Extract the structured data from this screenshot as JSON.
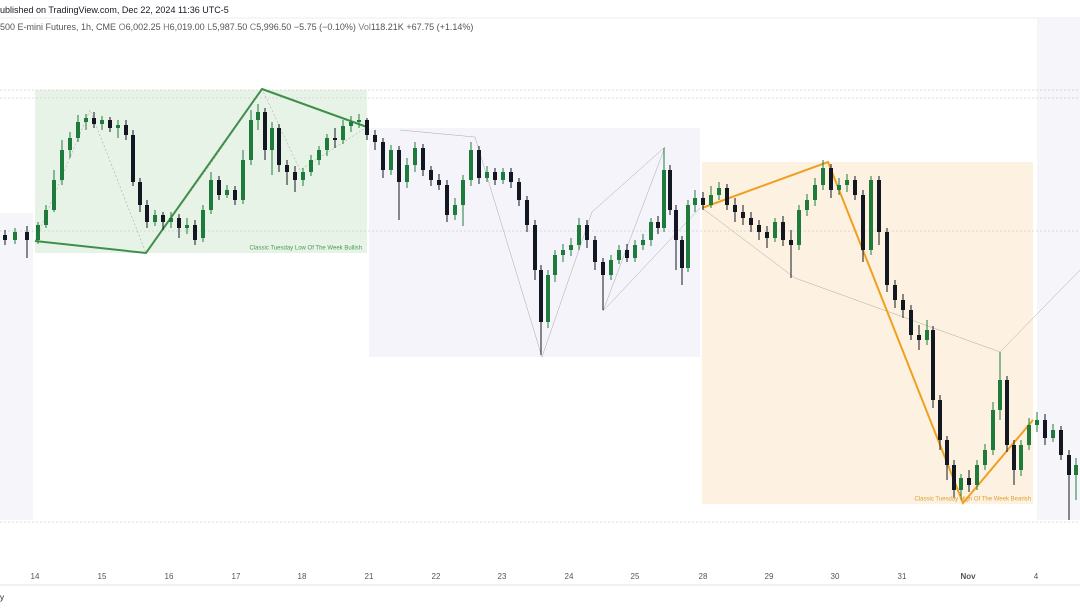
{
  "chart_data": {
    "type": "candlestick",
    "header": {
      "published": "ublished on TradingView.com, Dec 22, 2024 11:36 UTC-5",
      "symbol": "500 E-mini Futures, 1h, CME",
      "open_label": "O",
      "open": "6,002.25",
      "high_label": "H",
      "high": "6,019.00",
      "low_label": "L",
      "low": "5,987.50",
      "close_label": "C",
      "close": "5,996.50",
      "change": "−5.75 (−0.10%)",
      "vol_label": "Vol",
      "vol": "118.21K",
      "vol_change": "+67.75 (+1.14%)"
    },
    "annotations": [
      "Classic Tuesday Low Of The Week Bullish",
      "Classic Tuesday High Of The Week Bearish"
    ],
    "footer": "y",
    "up_color": "#1e7b3c",
    "down_color": "#131722",
    "xlim": [
      0,
      1080
    ],
    "ylim": [
      0,
      600
    ],
    "xticks": [
      {
        "value": 35,
        "label": "14"
      },
      {
        "value": 102,
        "label": "15"
      },
      {
        "value": 169,
        "label": "16"
      },
      {
        "value": 236,
        "label": "17"
      },
      {
        "value": 302,
        "label": "18"
      },
      {
        "value": 369,
        "label": "21"
      },
      {
        "value": 436,
        "label": "22"
      },
      {
        "value": 502,
        "label": "23"
      },
      {
        "value": 569,
        "label": "24"
      },
      {
        "value": 635,
        "label": "25"
      },
      {
        "value": 703,
        "label": "28"
      },
      {
        "value": 769,
        "label": "29"
      },
      {
        "value": 835,
        "label": "30"
      },
      {
        "value": 902,
        "label": "31"
      },
      {
        "value": 968,
        "label": "Nov"
      },
      {
        "value": 1036,
        "label": "4"
      }
    ],
    "candles": [
      {
        "x": 5,
        "open": 365,
        "high": 370,
        "low": 355,
        "close": 360
      },
      {
        "x": 15,
        "open": 360,
        "high": 372,
        "low": 356,
        "close": 368
      },
      {
        "x": 27,
        "open": 368,
        "high": 374,
        "low": 342,
        "close": 360
      },
      {
        "x": 38,
        "open": 360,
        "high": 378,
        "low": 356,
        "close": 375
      },
      {
        "x": 46,
        "open": 375,
        "high": 395,
        "low": 372,
        "close": 390
      },
      {
        "x": 54,
        "open": 390,
        "high": 430,
        "low": 388,
        "close": 420
      },
      {
        "x": 62,
        "open": 420,
        "high": 460,
        "low": 415,
        "close": 450
      },
      {
        "x": 70,
        "open": 450,
        "high": 468,
        "low": 442,
        "close": 462
      },
      {
        "x": 78,
        "open": 462,
        "high": 485,
        "low": 458,
        "close": 478
      },
      {
        "x": 86,
        "open": 478,
        "high": 486,
        "low": 470,
        "close": 482
      },
      {
        "x": 94,
        "open": 482,
        "high": 488,
        "low": 472,
        "close": 476
      },
      {
        "x": 102,
        "open": 476,
        "high": 484,
        "low": 470,
        "close": 480
      },
      {
        "x": 110,
        "open": 480,
        "high": 483,
        "low": 468,
        "close": 472
      },
      {
        "x": 118,
        "open": 472,
        "high": 480,
        "low": 462,
        "close": 475
      },
      {
        "x": 126,
        "open": 475,
        "high": 480,
        "low": 460,
        "close": 465
      },
      {
        "x": 133,
        "open": 465,
        "high": 470,
        "low": 414,
        "close": 418
      },
      {
        "x": 140,
        "open": 418,
        "high": 422,
        "low": 388,
        "close": 395
      },
      {
        "x": 147,
        "open": 395,
        "high": 400,
        "low": 372,
        "close": 378
      },
      {
        "x": 155,
        "open": 378,
        "high": 390,
        "low": 374,
        "close": 385
      },
      {
        "x": 163,
        "open": 385,
        "high": 388,
        "low": 370,
        "close": 378
      },
      {
        "x": 171,
        "open": 378,
        "high": 388,
        "low": 372,
        "close": 382
      },
      {
        "x": 179,
        "open": 382,
        "high": 386,
        "low": 362,
        "close": 372
      },
      {
        "x": 187,
        "open": 372,
        "high": 382,
        "low": 366,
        "close": 375
      },
      {
        "x": 195,
        "open": 375,
        "high": 380,
        "low": 355,
        "close": 360
      },
      {
        "x": 203,
        "open": 362,
        "high": 395,
        "low": 358,
        "close": 390
      },
      {
        "x": 211,
        "open": 390,
        "high": 428,
        "low": 386,
        "close": 420
      },
      {
        "x": 219,
        "open": 420,
        "high": 424,
        "low": 400,
        "close": 405
      },
      {
        "x": 227,
        "open": 405,
        "high": 415,
        "low": 402,
        "close": 410
      },
      {
        "x": 235,
        "open": 410,
        "high": 414,
        "low": 395,
        "close": 400
      },
      {
        "x": 243,
        "open": 400,
        "high": 450,
        "low": 396,
        "close": 440
      },
      {
        "x": 251,
        "open": 440,
        "high": 490,
        "low": 435,
        "close": 480
      },
      {
        "x": 258,
        "open": 480,
        "high": 496,
        "low": 470,
        "close": 488
      },
      {
        "x": 265,
        "open": 488,
        "high": 492,
        "low": 440,
        "close": 450
      },
      {
        "x": 272,
        "open": 450,
        "high": 478,
        "low": 425,
        "close": 472
      },
      {
        "x": 279,
        "open": 472,
        "high": 476,
        "low": 428,
        "close": 435
      },
      {
        "x": 287,
        "open": 435,
        "high": 440,
        "low": 415,
        "close": 428
      },
      {
        "x": 295,
        "open": 428,
        "high": 434,
        "low": 408,
        "close": 420
      },
      {
        "x": 303,
        "open": 420,
        "high": 432,
        "low": 414,
        "close": 428
      },
      {
        "x": 311,
        "open": 428,
        "high": 445,
        "low": 424,
        "close": 440
      },
      {
        "x": 319,
        "open": 440,
        "high": 454,
        "low": 435,
        "close": 450
      },
      {
        "x": 327,
        "open": 450,
        "high": 466,
        "low": 444,
        "close": 462
      },
      {
        "x": 335,
        "open": 462,
        "high": 472,
        "low": 452,
        "close": 460
      },
      {
        "x": 343,
        "open": 460,
        "high": 480,
        "low": 456,
        "close": 474
      },
      {
        "x": 351,
        "open": 474,
        "high": 484,
        "low": 468,
        "close": 478
      },
      {
        "x": 359,
        "open": 478,
        "high": 486,
        "low": 472,
        "close": 480
      },
      {
        "x": 367,
        "open": 480,
        "high": 482,
        "low": 460,
        "close": 465
      },
      {
        "x": 375,
        "open": 465,
        "high": 470,
        "low": 450,
        "close": 458
      },
      {
        "x": 383,
        "open": 458,
        "high": 462,
        "low": 422,
        "close": 430
      },
      {
        "x": 391,
        "open": 430,
        "high": 455,
        "low": 425,
        "close": 450
      },
      {
        "x": 399,
        "open": 450,
        "high": 454,
        "low": 380,
        "close": 418
      },
      {
        "x": 407,
        "open": 418,
        "high": 442,
        "low": 412,
        "close": 435
      },
      {
        "x": 415,
        "open": 435,
        "high": 458,
        "low": 428,
        "close": 452
      },
      {
        "x": 423,
        "open": 452,
        "high": 456,
        "low": 424,
        "close": 430
      },
      {
        "x": 431,
        "open": 430,
        "high": 434,
        "low": 414,
        "close": 420
      },
      {
        "x": 439,
        "open": 420,
        "high": 426,
        "low": 410,
        "close": 415
      },
      {
        "x": 447,
        "open": 415,
        "high": 420,
        "low": 378,
        "close": 385
      },
      {
        "x": 455,
        "open": 385,
        "high": 402,
        "low": 380,
        "close": 395
      },
      {
        "x": 463,
        "open": 395,
        "high": 425,
        "low": 374,
        "close": 420
      },
      {
        "x": 471,
        "open": 420,
        "high": 458,
        "low": 414,
        "close": 450
      },
      {
        "x": 479,
        "open": 450,
        "high": 454,
        "low": 416,
        "close": 422
      },
      {
        "x": 487,
        "open": 422,
        "high": 434,
        "low": 418,
        "close": 428
      },
      {
        "x": 495,
        "open": 428,
        "high": 432,
        "low": 415,
        "close": 420
      },
      {
        "x": 503,
        "open": 420,
        "high": 432,
        "low": 416,
        "close": 428
      },
      {
        "x": 511,
        "open": 428,
        "high": 432,
        "low": 412,
        "close": 418
      },
      {
        "x": 519,
        "open": 418,
        "high": 422,
        "low": 394,
        "close": 400
      },
      {
        "x": 527,
        "open": 400,
        "high": 404,
        "low": 368,
        "close": 375
      },
      {
        "x": 535,
        "open": 375,
        "high": 380,
        "low": 320,
        "close": 330
      },
      {
        "x": 541,
        "open": 330,
        "high": 335,
        "low": 245,
        "close": 278
      },
      {
        "x": 548,
        "open": 278,
        "high": 330,
        "low": 272,
        "close": 325
      },
      {
        "x": 555,
        "open": 325,
        "high": 350,
        "low": 318,
        "close": 345
      },
      {
        "x": 563,
        "open": 345,
        "high": 356,
        "low": 338,
        "close": 350
      },
      {
        "x": 571,
        "open": 350,
        "high": 362,
        "low": 344,
        "close": 355
      },
      {
        "x": 579,
        "open": 355,
        "high": 382,
        "low": 350,
        "close": 375
      },
      {
        "x": 587,
        "open": 375,
        "high": 380,
        "low": 352,
        "close": 360
      },
      {
        "x": 595,
        "open": 360,
        "high": 364,
        "low": 330,
        "close": 338
      },
      {
        "x": 603,
        "open": 338,
        "high": 342,
        "low": 290,
        "close": 325
      },
      {
        "x": 611,
        "open": 325,
        "high": 345,
        "low": 320,
        "close": 340
      },
      {
        "x": 619,
        "open": 340,
        "high": 355,
        "low": 336,
        "close": 350
      },
      {
        "x": 627,
        "open": 350,
        "high": 356,
        "low": 338,
        "close": 342
      },
      {
        "x": 635,
        "open": 342,
        "high": 360,
        "low": 338,
        "close": 355
      },
      {
        "x": 643,
        "open": 355,
        "high": 366,
        "low": 350,
        "close": 360
      },
      {
        "x": 651,
        "open": 360,
        "high": 382,
        "low": 354,
        "close": 378
      },
      {
        "x": 658,
        "open": 378,
        "high": 384,
        "low": 366,
        "close": 372
      },
      {
        "x": 664,
        "open": 372,
        "high": 452,
        "low": 368,
        "close": 430
      },
      {
        "x": 670,
        "open": 430,
        "high": 435,
        "low": 385,
        "close": 390
      },
      {
        "x": 676,
        "open": 390,
        "high": 395,
        "low": 330,
        "close": 360
      },
      {
        "x": 682,
        "open": 360,
        "high": 364,
        "low": 315,
        "close": 332
      },
      {
        "x": 688,
        "open": 332,
        "high": 400,
        "low": 328,
        "close": 395
      },
      {
        "x": 695,
        "open": 395,
        "high": 410,
        "low": 388,
        "close": 402
      },
      {
        "x": 703,
        "open": 402,
        "high": 408,
        "low": 390,
        "close": 395
      },
      {
        "x": 711,
        "open": 395,
        "high": 414,
        "low": 392,
        "close": 405
      },
      {
        "x": 719,
        "open": 405,
        "high": 418,
        "low": 400,
        "close": 412
      },
      {
        "x": 727,
        "open": 412,
        "high": 416,
        "low": 390,
        "close": 395
      },
      {
        "x": 735,
        "open": 395,
        "high": 402,
        "low": 378,
        "close": 388
      },
      {
        "x": 743,
        "open": 388,
        "high": 395,
        "low": 375,
        "close": 382
      },
      {
        "x": 751,
        "open": 382,
        "high": 388,
        "low": 368,
        "close": 375
      },
      {
        "x": 759,
        "open": 375,
        "high": 380,
        "low": 360,
        "close": 368
      },
      {
        "x": 767,
        "open": 368,
        "high": 374,
        "low": 352,
        "close": 362
      },
      {
        "x": 775,
        "open": 362,
        "high": 382,
        "low": 358,
        "close": 378
      },
      {
        "x": 783,
        "open": 378,
        "high": 384,
        "low": 354,
        "close": 360
      },
      {
        "x": 791,
        "open": 360,
        "high": 370,
        "low": 322,
        "close": 355
      },
      {
        "x": 799,
        "open": 355,
        "high": 395,
        "low": 350,
        "close": 390
      },
      {
        "x": 807,
        "open": 390,
        "high": 406,
        "low": 384,
        "close": 400
      },
      {
        "x": 815,
        "open": 400,
        "high": 422,
        "low": 394,
        "close": 415
      },
      {
        "x": 823,
        "open": 415,
        "high": 440,
        "low": 410,
        "close": 432
      },
      {
        "x": 831,
        "open": 432,
        "high": 436,
        "low": 402,
        "close": 410
      },
      {
        "x": 839,
        "open": 410,
        "high": 422,
        "low": 405,
        "close": 415
      },
      {
        "x": 847,
        "open": 415,
        "high": 426,
        "low": 408,
        "close": 420
      },
      {
        "x": 855,
        "open": 420,
        "high": 424,
        "low": 400,
        "close": 405
      },
      {
        "x": 863,
        "open": 405,
        "high": 410,
        "low": 338,
        "close": 350
      },
      {
        "x": 871,
        "open": 350,
        "high": 424,
        "low": 345,
        "close": 420
      },
      {
        "x": 879,
        "open": 420,
        "high": 424,
        "low": 355,
        "close": 368
      },
      {
        "x": 887,
        "open": 368,
        "high": 372,
        "low": 308,
        "close": 315
      },
      {
        "x": 895,
        "open": 315,
        "high": 320,
        "low": 292,
        "close": 300
      },
      {
        "x": 903,
        "open": 300,
        "high": 306,
        "low": 282,
        "close": 290
      },
      {
        "x": 911,
        "open": 290,
        "high": 295,
        "low": 260,
        "close": 265
      },
      {
        "x": 919,
        "open": 265,
        "high": 275,
        "low": 250,
        "close": 260
      },
      {
        "x": 927,
        "open": 260,
        "high": 280,
        "low": 255,
        "close": 270
      },
      {
        "x": 933,
        "open": 270,
        "high": 274,
        "low": 192,
        "close": 200
      },
      {
        "x": 940,
        "open": 200,
        "high": 205,
        "low": 150,
        "close": 160
      },
      {
        "x": 947,
        "open": 160,
        "high": 164,
        "low": 120,
        "close": 135
      },
      {
        "x": 954,
        "open": 135,
        "high": 140,
        "low": 102,
        "close": 110
      },
      {
        "x": 961,
        "open": 110,
        "high": 126,
        "low": 100,
        "close": 122
      },
      {
        "x": 969,
        "open": 122,
        "high": 130,
        "low": 108,
        "close": 115
      },
      {
        "x": 977,
        "open": 115,
        "high": 140,
        "low": 110,
        "close": 135
      },
      {
        "x": 985,
        "open": 135,
        "high": 156,
        "low": 130,
        "close": 150
      },
      {
        "x": 993,
        "open": 150,
        "high": 198,
        "low": 145,
        "close": 190
      },
      {
        "x": 1000,
        "open": 190,
        "high": 248,
        "low": 180,
        "close": 220
      },
      {
        "x": 1007,
        "open": 220,
        "high": 224,
        "low": 148,
        "close": 155
      },
      {
        "x": 1014,
        "open": 155,
        "high": 160,
        "low": 115,
        "close": 130
      },
      {
        "x": 1021,
        "open": 130,
        "high": 160,
        "low": 124,
        "close": 155
      },
      {
        "x": 1029,
        "open": 155,
        "high": 182,
        "low": 150,
        "close": 175
      },
      {
        "x": 1037,
        "open": 175,
        "high": 188,
        "low": 168,
        "close": 180
      },
      {
        "x": 1045,
        "open": 180,
        "high": 186,
        "low": 155,
        "close": 162
      },
      {
        "x": 1053,
        "open": 162,
        "high": 176,
        "low": 158,
        "close": 170
      },
      {
        "x": 1061,
        "open": 170,
        "high": 174,
        "low": 140,
        "close": 145
      },
      {
        "x": 1069,
        "open": 145,
        "high": 150,
        "low": 80,
        "close": 125
      },
      {
        "x": 1076,
        "open": 125,
        "high": 142,
        "low": 100,
        "close": 135
      }
    ]
  }
}
